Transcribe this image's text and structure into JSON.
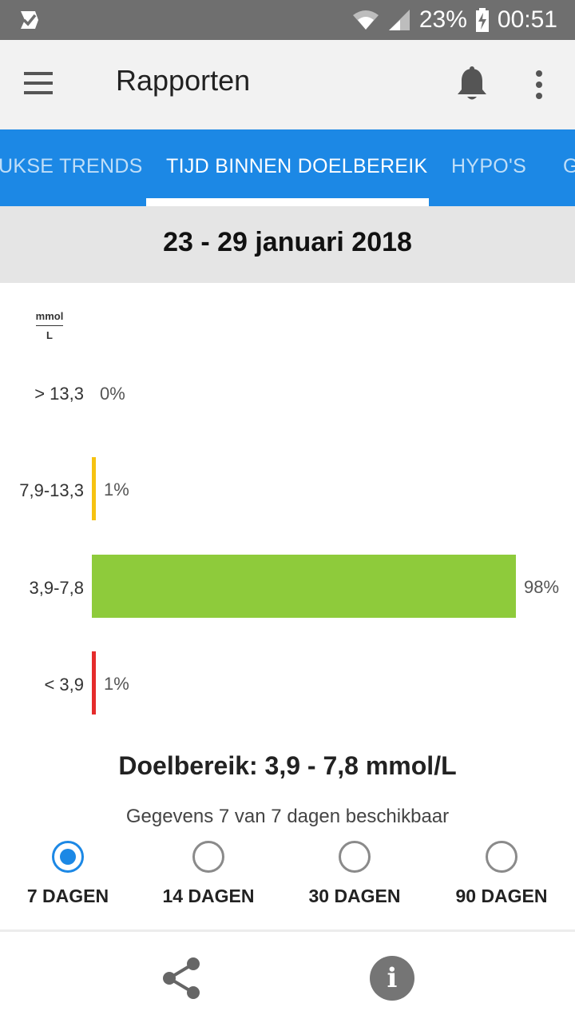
{
  "status_bar": {
    "battery_percent": "23%",
    "time": "00:51",
    "icons": [
      "check-notification-icon",
      "wifi-icon",
      "signal-icon",
      "battery-charging-icon"
    ]
  },
  "app_bar": {
    "title": "Rapporten",
    "icons": [
      "menu-icon",
      "bell-icon",
      "more-vert-icon"
    ]
  },
  "tabs": [
    {
      "label": "UKSE TRENDS",
      "active": false
    },
    {
      "label": "TIJD BINNEN DOELBEREIK",
      "active": true
    },
    {
      "label": "HYPO'S",
      "active": false
    },
    {
      "label": "G",
      "active": false
    }
  ],
  "date_range": "23 - 29 januari 2018",
  "chart_data": {
    "type": "bar",
    "orientation": "horizontal",
    "unit_label": {
      "numerator": "mmol",
      "denominator": "L"
    },
    "categories": [
      "> 13,3",
      "7,9-13,3",
      "3,9-7,8",
      "< 3,9"
    ],
    "values": [
      0,
      1,
      98,
      1
    ],
    "value_labels": [
      "0%",
      "1%",
      "98%",
      "1%"
    ],
    "colors": [
      "#f5a623",
      "#f6c211",
      "#8ecb3b",
      "#e52b2b"
    ],
    "xlim": [
      0,
      100
    ]
  },
  "target_range": "Doelbereik: 3,9 - 7,8 mmol/L",
  "availability": "Gegevens 7 van 7 dagen beschikbaar",
  "period_options": [
    {
      "label": "7 DAGEN",
      "selected": true
    },
    {
      "label": "14 DAGEN",
      "selected": false
    },
    {
      "label": "30 DAGEN",
      "selected": false
    },
    {
      "label": "90 DAGEN",
      "selected": false
    }
  ],
  "bottom_actions": {
    "info_glyph": "i",
    "icons": [
      "share-icon",
      "info-icon"
    ]
  }
}
